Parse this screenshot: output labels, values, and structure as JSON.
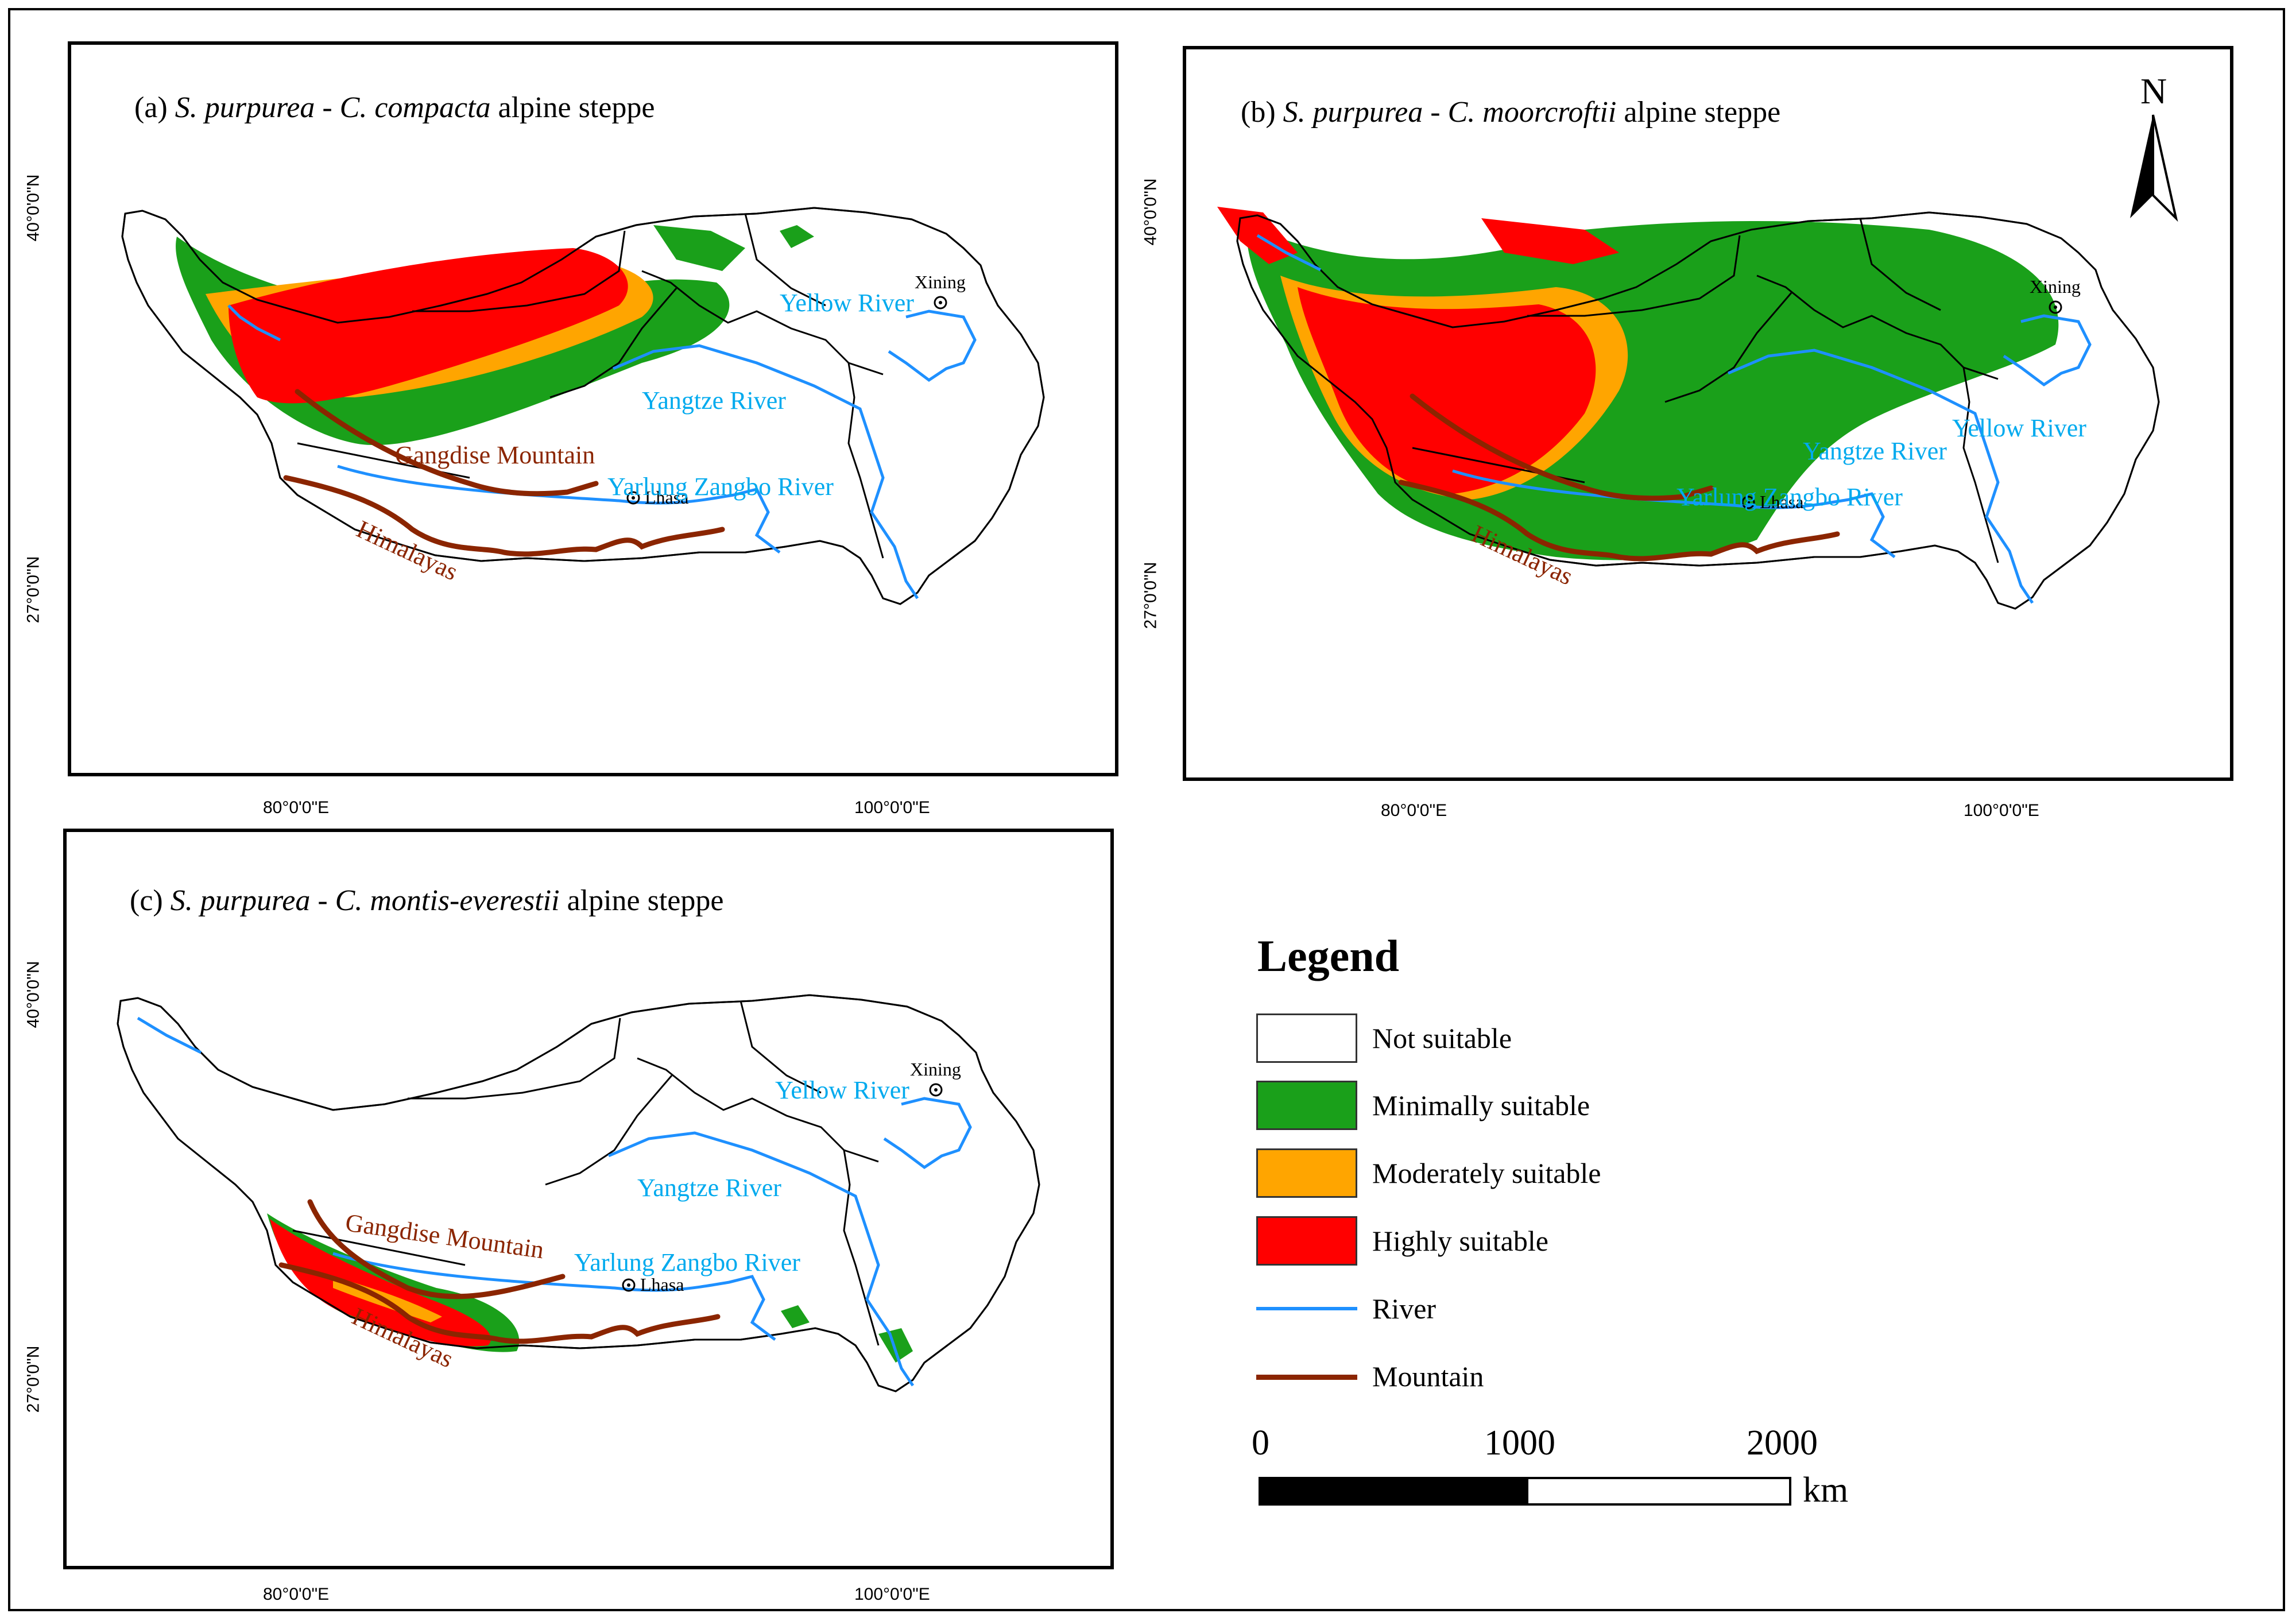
{
  "figure": {
    "panels": [
      {
        "id": "a",
        "prefix": "(a) ",
        "species1": "S. purpurea",
        "sep": " - ",
        "species2": "C. compacta",
        "suffix": " alpine steppe"
      },
      {
        "id": "b",
        "prefix": "(b) ",
        "species1": "S. purpurea",
        "sep": " - ",
        "species2": "C. moorcroftii",
        "suffix": " alpine steppe"
      },
      {
        "id": "c",
        "prefix": "(c) ",
        "species1": "S. purpurea",
        "sep": " - ",
        "species2": "C. montis-everestii",
        "suffix": " alpine steppe"
      }
    ],
    "lat_labels": [
      "40°0'0\"N",
      "27°0'0\"N"
    ],
    "lon_labels": [
      "80°0'0\"E",
      "100°0'0\"E"
    ],
    "map_labels": {
      "yellow_river": "Yellow River",
      "yangtze_river": "Yangtze River",
      "yarlung_zangbo_river": "Yarlung Zangbo River",
      "gangdise_mountain": "Gangdise Mountain",
      "himalayas": "Himalayas",
      "xining": "Xining",
      "lhasa": "Lhasa"
    },
    "north_arrow": "N",
    "legend": {
      "title": "Legend",
      "items": [
        {
          "label": "Not suitable",
          "color": "#ffffff",
          "kind": "swatch"
        },
        {
          "label": "Minimally suitable",
          "color": "#1aa01a",
          "kind": "swatch"
        },
        {
          "label": "Moderately suitable",
          "color": "#ffa500",
          "kind": "swatch"
        },
        {
          "label": "Highly suitable",
          "color": "#ff0000",
          "kind": "swatch"
        },
        {
          "label": "River",
          "color": "#1e90ff",
          "kind": "line"
        },
        {
          "label": "Mountain",
          "color": "#8b2500",
          "kind": "line"
        }
      ]
    },
    "scale_bar": {
      "ticks": [
        "0",
        "1000",
        "2000"
      ],
      "unit": "km"
    },
    "colors": {
      "river": "#1e90ff",
      "mountain": "#8b2500",
      "river_text": "#00aaee",
      "mountain_text": "#8b2500"
    }
  }
}
